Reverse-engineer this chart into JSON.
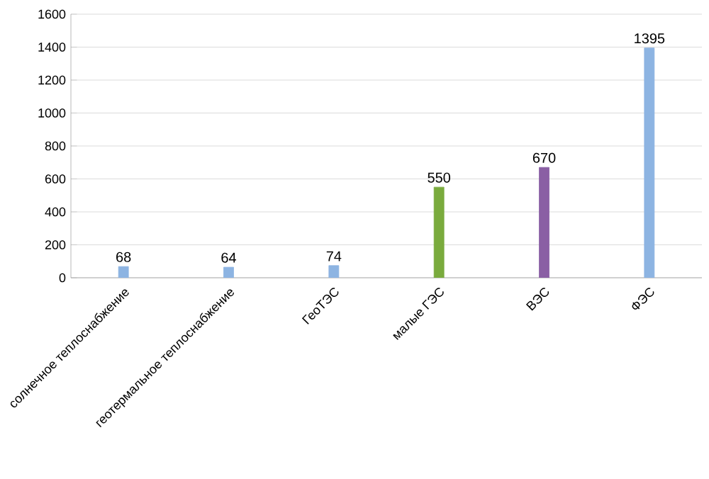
{
  "chart_data": {
    "type": "bar",
    "categories": [
      "солнечное теплоснабжение",
      "геотермальное теплоснабжение",
      "ГеоТЭС",
      "малые ГЭС",
      "ВЭС",
      "ФЭС"
    ],
    "values": [
      68,
      64,
      74,
      550,
      670,
      1395
    ],
    "colors": [
      "#8db4e2",
      "#8db4e2",
      "#8db4e2",
      "#7aab3d",
      "#8a5fa4",
      "#8db4e2"
    ],
    "ylim": [
      0,
      1600
    ],
    "yticks": [
      0,
      200,
      400,
      600,
      800,
      1000,
      1200,
      1400,
      1600
    ],
    "grid": "y",
    "data_labels": true
  }
}
